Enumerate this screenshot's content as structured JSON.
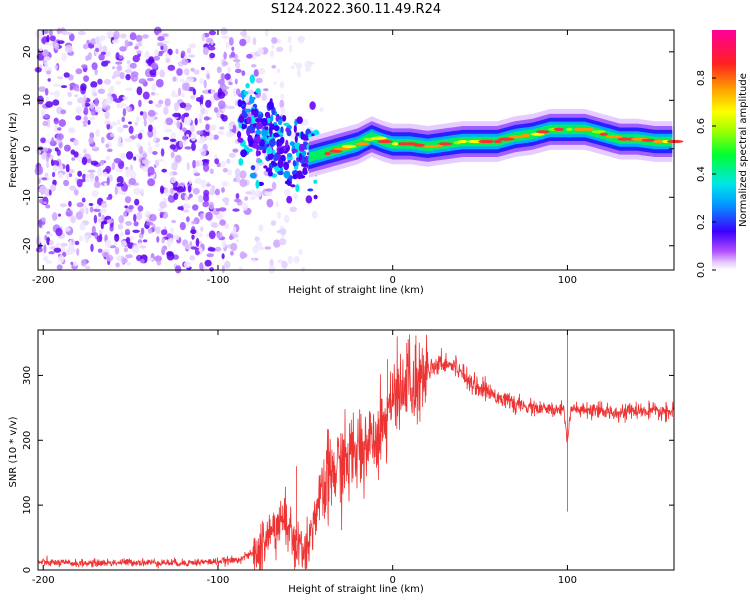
{
  "title": "S124.2022.360.11.49.R24",
  "chart_data": [
    {
      "type": "heatmap",
      "xlabel": "Height of straight line (km)",
      "ylabel": "Frequency (Hz)",
      "xlim": [
        -203,
        161
      ],
      "ylim": [
        -25,
        24.5
      ],
      "xticks": [
        "-200",
        "-100",
        "0",
        "100"
      ],
      "yticks": [
        "-20",
        "-10",
        "0",
        "10",
        "20"
      ],
      "colorbar": {
        "label": "Normalized spectral amplitude",
        "range": [
          0.0,
          1.0
        ],
        "ticks": [
          "0.0",
          "0.2",
          "0.4",
          "0.6",
          "0.8"
        ]
      },
      "ridge": [
        {
          "x": -85,
          "y": 6
        },
        {
          "x": -78,
          "y": 4
        },
        {
          "x": -70,
          "y": 2
        },
        {
          "x": -60,
          "y": -1
        },
        {
          "x": -50,
          "y": -2
        },
        {
          "x": -40,
          "y": -1
        },
        {
          "x": -30,
          "y": 0
        },
        {
          "x": -20,
          "y": 1
        },
        {
          "x": -12,
          "y": 2.5
        },
        {
          "x": -5,
          "y": 1.5
        },
        {
          "x": 0,
          "y": 1
        },
        {
          "x": 10,
          "y": 1
        },
        {
          "x": 20,
          "y": 0.5
        },
        {
          "x": 30,
          "y": 1
        },
        {
          "x": 40,
          "y": 1.5
        },
        {
          "x": 50,
          "y": 1.5
        },
        {
          "x": 60,
          "y": 1.5
        },
        {
          "x": 70,
          "y": 2.5
        },
        {
          "x": 80,
          "y": 3
        },
        {
          "x": 90,
          "y": 4
        },
        {
          "x": 100,
          "y": 4
        },
        {
          "x": 110,
          "y": 4
        },
        {
          "x": 120,
          "y": 3
        },
        {
          "x": 130,
          "y": 2
        },
        {
          "x": 140,
          "y": 2
        },
        {
          "x": 150,
          "y": 1.5
        },
        {
          "x": 161,
          "y": 1.5
        }
      ],
      "noise_region": [
        -203,
        -80
      ]
    },
    {
      "type": "line",
      "xlabel": "Height of straight line (km)",
      "ylabel": "SNR (10 * v/v)",
      "xlim": [
        -203,
        161
      ],
      "ylim": [
        0,
        370
      ],
      "xticks": [
        "-200",
        "-100",
        "0",
        "100"
      ],
      "yticks": [
        "0",
        "100",
        "200",
        "300"
      ],
      "color": "#ee3333",
      "series": [
        {
          "x": [
            -203,
            -180,
            -150,
            -120,
            -100,
            -90,
            -80,
            -75,
            -70,
            -65,
            -60,
            -55,
            -50,
            -45,
            -40,
            -35,
            -30,
            -25,
            -20,
            -15,
            -10,
            -5,
            0,
            5,
            10,
            15,
            20,
            25,
            30,
            35,
            40,
            45,
            50,
            55,
            60,
            65,
            70,
            75,
            80,
            85,
            90,
            95,
            98,
            100,
            102,
            105,
            110,
            120,
            130,
            140,
            150,
            161
          ],
          "y": [
            12,
            10,
            12,
            11,
            13,
            15,
            25,
            40,
            55,
            75,
            70,
            45,
            25,
            80,
            120,
            150,
            160,
            170,
            185,
            195,
            210,
            230,
            260,
            270,
            285,
            295,
            310,
            318,
            320,
            315,
            305,
            290,
            280,
            275,
            268,
            262,
            255,
            252,
            250,
            248,
            247,
            246,
            250,
            200,
            250,
            246,
            245,
            244,
            244,
            245,
            244,
            244
          ]
        }
      ],
      "spikes": [
        {
          "x": 100,
          "y": 365
        },
        {
          "x": 100,
          "y": 90
        },
        {
          "x": 8,
          "y": 350
        },
        {
          "x": -3,
          "y": 325
        },
        {
          "x": -55,
          "y": 160
        }
      ]
    }
  ]
}
